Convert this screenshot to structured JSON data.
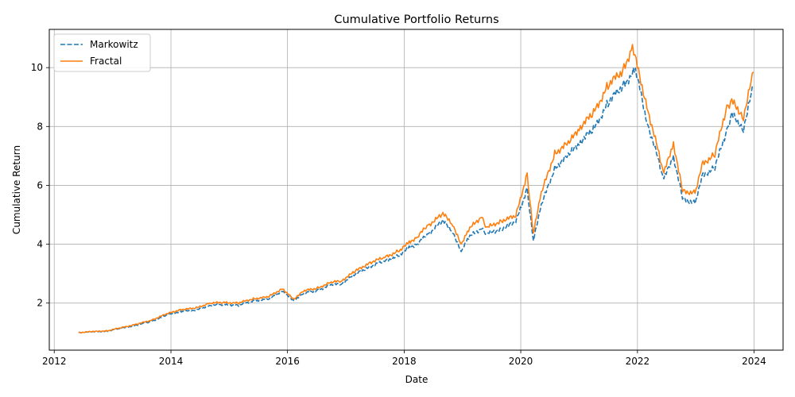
{
  "chart_data": {
    "type": "line",
    "title": "Cumulative Portfolio Returns",
    "xlabel": "Date",
    "ylabel": "Cumulative Return",
    "xlim": [
      "2011-12-01",
      "2024-07-01"
    ],
    "ylim": [
      0.4,
      11.3
    ],
    "x_ticks": [
      "2012",
      "2014",
      "2016",
      "2018",
      "2020",
      "2022",
      "2024"
    ],
    "y_ticks": [
      2,
      4,
      6,
      8,
      10
    ],
    "grid": true,
    "legend_position": "top-left",
    "series": [
      {
        "name": "Markowitz",
        "color": "#1f77b4",
        "style": "dashed",
        "points": [
          [
            "2012-06-01",
            1.0
          ],
          [
            "2012-09-01",
            1.02
          ],
          [
            "2012-12-01",
            1.05
          ],
          [
            "2013-03-01",
            1.15
          ],
          [
            "2013-06-01",
            1.25
          ],
          [
            "2013-09-01",
            1.38
          ],
          [
            "2013-12-01",
            1.58
          ],
          [
            "2014-03-01",
            1.72
          ],
          [
            "2014-06-01",
            1.75
          ],
          [
            "2014-09-01",
            1.92
          ],
          [
            "2014-12-01",
            1.95
          ],
          [
            "2015-03-01",
            1.92
          ],
          [
            "2015-06-01",
            2.08
          ],
          [
            "2015-09-01",
            2.12
          ],
          [
            "2015-12-01",
            2.42
          ],
          [
            "2016-02-10",
            2.05
          ],
          [
            "2016-04-01",
            2.32
          ],
          [
            "2016-07-01",
            2.42
          ],
          [
            "2016-10-01",
            2.62
          ],
          [
            "2016-12-01",
            2.65
          ],
          [
            "2017-03-01",
            2.98
          ],
          [
            "2017-06-01",
            3.25
          ],
          [
            "2017-09-01",
            3.42
          ],
          [
            "2017-12-01",
            3.62
          ],
          [
            "2018-02-01",
            3.88
          ],
          [
            "2018-04-01",
            4.05
          ],
          [
            "2018-06-01",
            4.35
          ],
          [
            "2018-09-01",
            4.78
          ],
          [
            "2018-11-01",
            4.45
          ],
          [
            "2018-12-24",
            3.7
          ],
          [
            "2019-02-01",
            4.2
          ],
          [
            "2019-05-01",
            4.55
          ],
          [
            "2019-06-01",
            4.35
          ],
          [
            "2019-09-01",
            4.52
          ],
          [
            "2019-12-01",
            4.75
          ],
          [
            "2020-02-10",
            5.9
          ],
          [
            "2020-03-20",
            4.1
          ],
          [
            "2020-05-01",
            5.2
          ],
          [
            "2020-08-01",
            6.6
          ],
          [
            "2020-11-01",
            7.05
          ],
          [
            "2021-01-01",
            7.45
          ],
          [
            "2021-04-01",
            7.9
          ],
          [
            "2021-07-01",
            8.8
          ],
          [
            "2021-10-01",
            9.4
          ],
          [
            "2021-12-20",
            9.9
          ],
          [
            "2022-03-01",
            8.2
          ],
          [
            "2022-06-15",
            6.2
          ],
          [
            "2022-08-15",
            7.0
          ],
          [
            "2022-10-10",
            5.55
          ],
          [
            "2022-12-28",
            5.4
          ],
          [
            "2023-02-15",
            6.35
          ],
          [
            "2023-05-01",
            6.6
          ],
          [
            "2023-07-15",
            7.9
          ],
          [
            "2023-08-15",
            8.4
          ],
          [
            "2023-10-27",
            7.95
          ],
          [
            "2023-12-29",
            9.4
          ]
        ]
      },
      {
        "name": "Fractal",
        "color": "#ff7f0e",
        "style": "solid",
        "points": [
          [
            "2012-06-01",
            1.0
          ],
          [
            "2012-09-01",
            1.03
          ],
          [
            "2012-12-01",
            1.06
          ],
          [
            "2013-03-01",
            1.17
          ],
          [
            "2013-06-01",
            1.28
          ],
          [
            "2013-09-01",
            1.42
          ],
          [
            "2013-12-01",
            1.62
          ],
          [
            "2014-03-01",
            1.78
          ],
          [
            "2014-06-01",
            1.82
          ],
          [
            "2014-09-01",
            2.0
          ],
          [
            "2014-12-01",
            2.02
          ],
          [
            "2015-03-01",
            2.0
          ],
          [
            "2015-06-01",
            2.15
          ],
          [
            "2015-09-01",
            2.2
          ],
          [
            "2015-12-01",
            2.5
          ],
          [
            "2016-02-10",
            2.1
          ],
          [
            "2016-04-01",
            2.4
          ],
          [
            "2016-07-01",
            2.5
          ],
          [
            "2016-10-01",
            2.7
          ],
          [
            "2016-12-01",
            2.75
          ],
          [
            "2017-03-01",
            3.08
          ],
          [
            "2017-06-01",
            3.38
          ],
          [
            "2017-09-01",
            3.55
          ],
          [
            "2017-12-01",
            3.78
          ],
          [
            "2018-02-01",
            4.05
          ],
          [
            "2018-04-01",
            4.3
          ],
          [
            "2018-06-01",
            4.65
          ],
          [
            "2018-09-01",
            5.02
          ],
          [
            "2018-11-01",
            4.7
          ],
          [
            "2018-12-24",
            3.95
          ],
          [
            "2019-02-01",
            4.45
          ],
          [
            "2019-05-01",
            4.95
          ],
          [
            "2019-06-01",
            4.55
          ],
          [
            "2019-09-01",
            4.8
          ],
          [
            "2019-12-01",
            4.95
          ],
          [
            "2020-02-10",
            6.4
          ],
          [
            "2020-03-20",
            4.35
          ],
          [
            "2020-05-01",
            5.6
          ],
          [
            "2020-08-01",
            7.1
          ],
          [
            "2020-11-01",
            7.45
          ],
          [
            "2021-01-01",
            7.95
          ],
          [
            "2021-04-01",
            8.45
          ],
          [
            "2021-07-01",
            9.4
          ],
          [
            "2021-10-01",
            9.9
          ],
          [
            "2021-12-01",
            10.7
          ],
          [
            "2022-03-01",
            8.7
          ],
          [
            "2022-06-15",
            6.4
          ],
          [
            "2022-08-15",
            7.45
          ],
          [
            "2022-10-10",
            5.8
          ],
          [
            "2022-12-28",
            5.75
          ],
          [
            "2023-02-15",
            6.75
          ],
          [
            "2023-05-01",
            7.05
          ],
          [
            "2023-07-15",
            8.7
          ],
          [
            "2023-08-15",
            8.85
          ],
          [
            "2023-10-27",
            8.35
          ],
          [
            "2023-12-29",
            9.85
          ]
        ]
      }
    ]
  }
}
